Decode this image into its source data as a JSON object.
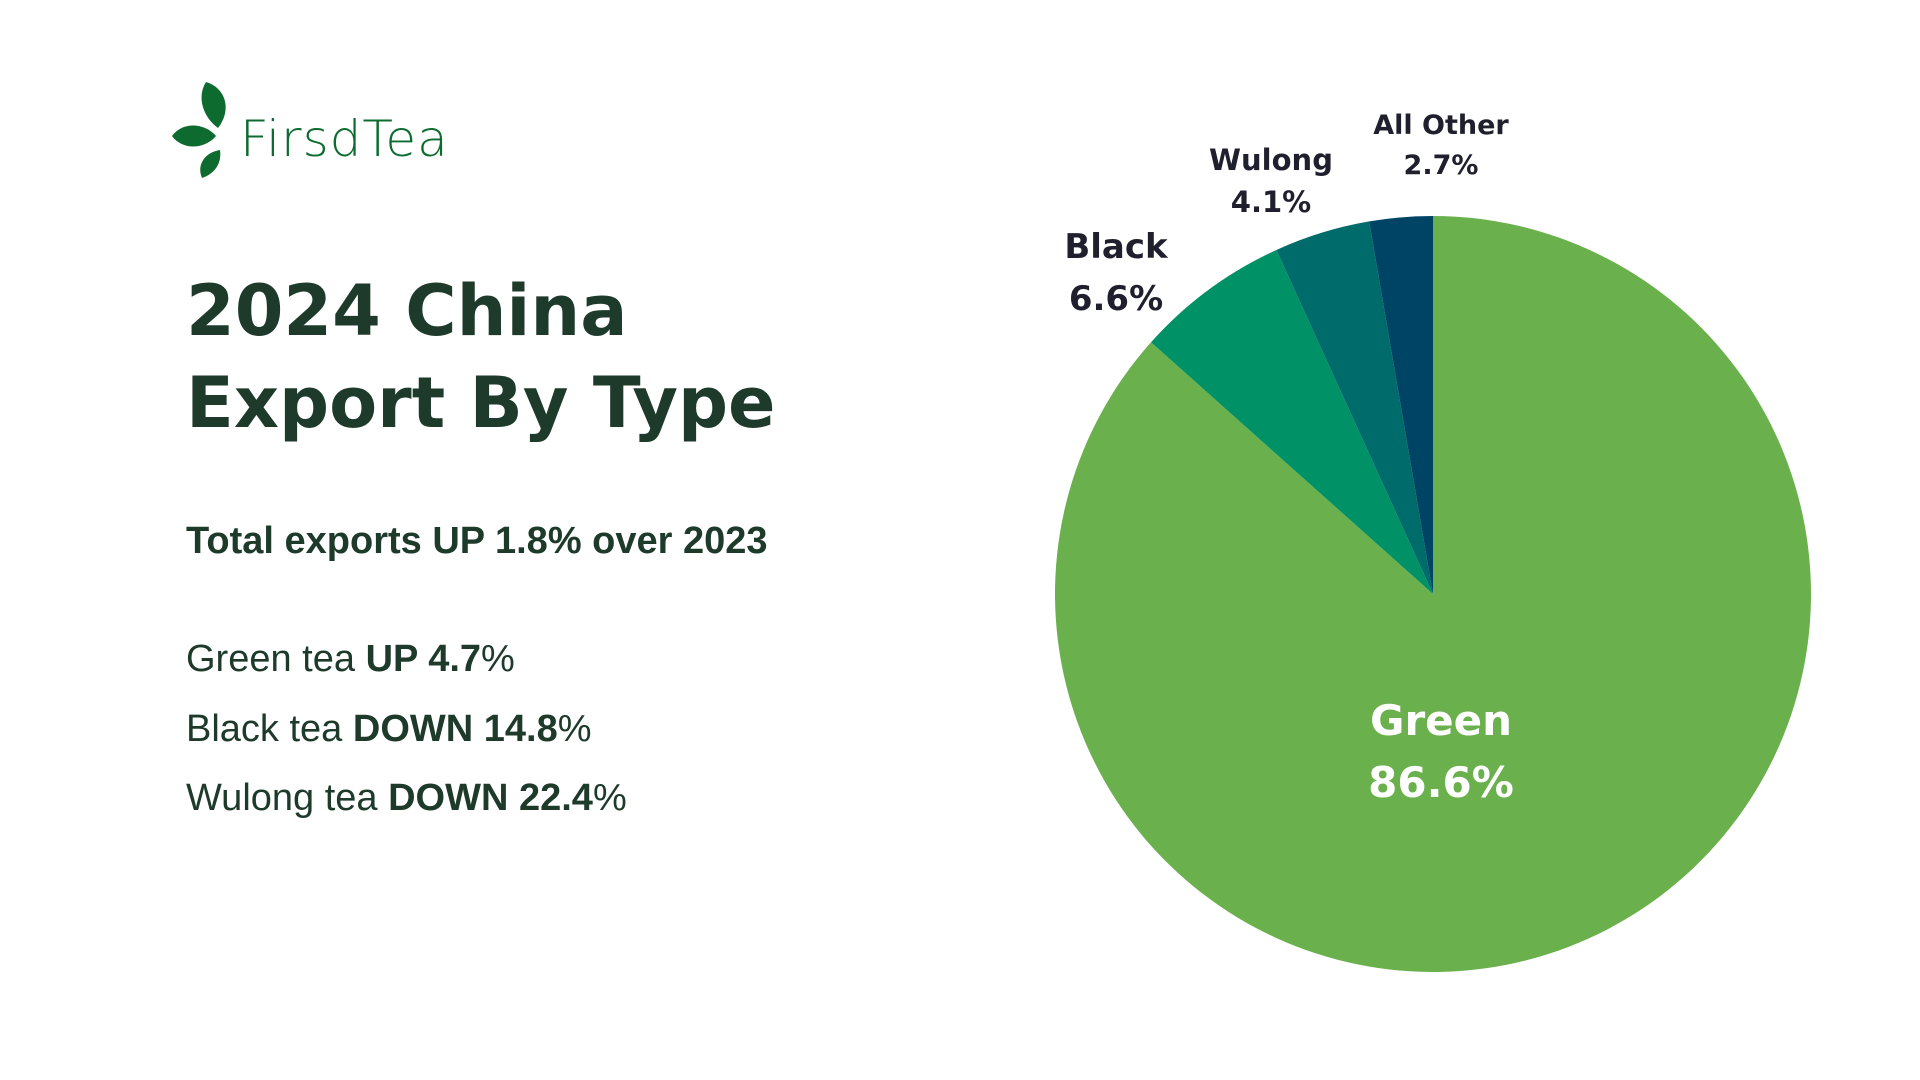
{
  "logo": {
    "text": "FirsdTea",
    "color": "#0d6b2f"
  },
  "title": {
    "line1": "2024 China",
    "line2": "Export By Type"
  },
  "subtitle": "Total exports UP 1.8% over 2023",
  "stats": [
    {
      "label": "Green tea",
      "change": "UP 4.7",
      "suffix": "%"
    },
    {
      "label": "Black tea",
      "change": "DOWN 14.8",
      "suffix": "%"
    },
    {
      "label": "Wulong tea",
      "change": "DOWN 22.4",
      "suffix": "%"
    }
  ],
  "chart_data": {
    "type": "pie",
    "start": "top",
    "direction": "clockwise",
    "slices": [
      {
        "name": "Green",
        "value": 86.6,
        "label": "86.6%",
        "color": "#6ab04c",
        "label_color": "#ffffff"
      },
      {
        "name": "Black",
        "value": 6.6,
        "label": "6.6%",
        "color": "#009167",
        "label_color": "#1f1f2e"
      },
      {
        "name": "Wulong",
        "value": 4.1,
        "label": "4.1%",
        "color": "#006b6b",
        "label_color": "#1f1f2e"
      },
      {
        "name": "All Other",
        "value": 2.7,
        "label": "2.7%",
        "color": "#004465",
        "label_color": "#1f1f2e"
      }
    ]
  }
}
